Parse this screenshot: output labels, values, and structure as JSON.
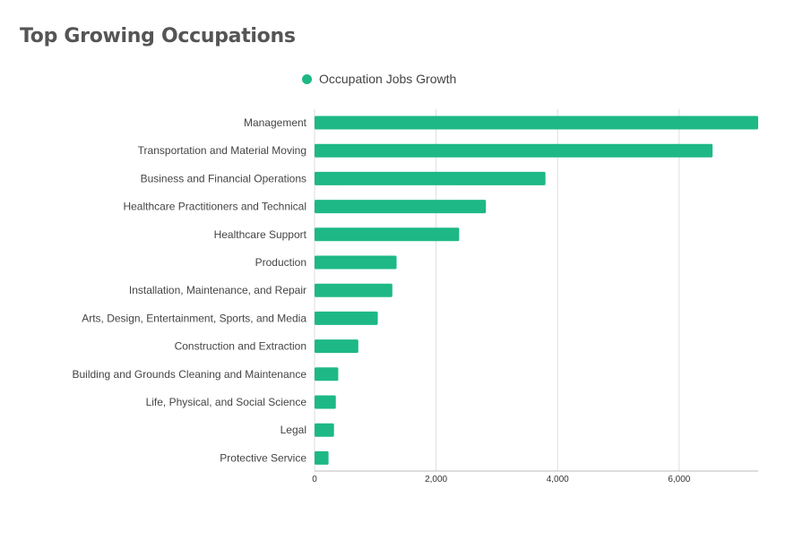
{
  "chart_data": {
    "type": "bar",
    "orientation": "horizontal",
    "title": "Top Growing Occupations",
    "legend_position": "top-center",
    "grid": true,
    "xlim": [
      0,
      7300
    ],
    "x_ticks": [
      0,
      2000,
      4000,
      6000
    ],
    "x_tick_labels": [
      "0",
      "2,000",
      "4,000",
      "6,000"
    ],
    "categories": [
      "Management",
      "Transportation and Material Moving",
      "Business and Financial Operations",
      "Healthcare Practitioners and Technical",
      "Healthcare Support",
      "Production",
      "Installation, Maintenance, and Repair",
      "Arts, Design, Entertainment, Sports, and Media",
      "Construction and Extraction",
      "Building and Grounds Cleaning and Maintenance",
      "Life, Physical, and Social Science",
      "Legal",
      "Protective Service"
    ],
    "series": [
      {
        "name": "Occupation Jobs Growth",
        "color": "#1db886",
        "values": [
          7300,
          6550,
          3800,
          2820,
          2380,
          1350,
          1280,
          1040,
          720,
          390,
          350,
          320,
          230
        ]
      }
    ]
  }
}
